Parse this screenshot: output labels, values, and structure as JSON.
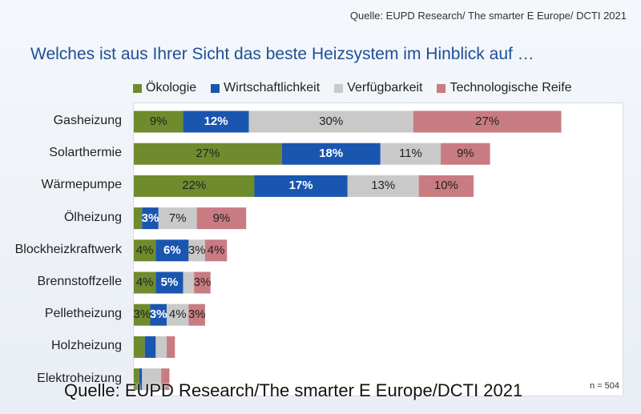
{
  "header": {
    "source": "Quelle: EUPD Research/ The smarter E Europe/ DCTI 2021"
  },
  "chart_data": {
    "type": "bar",
    "orientation": "horizontal",
    "stacked": true,
    "title": "Welches ist aus Ihrer Sicht das beste Heizsystem im Hinblick auf …",
    "categories": [
      "Gasheizung",
      "Solarthermie",
      "Wärmepumpe",
      "Ölheizung",
      "Blockheizkraftwerk",
      "Brennstoffzelle",
      "Pelletheizung",
      "Holzheizung",
      "Elektroheizung"
    ],
    "series": [
      {
        "name": "Ökologie",
        "color": "#6f8b2e",
        "label_color": "#222222",
        "values": [
          9,
          27,
          22,
          1.5,
          4,
          4,
          3,
          2,
          1
        ],
        "labels": [
          "9%",
          "27%",
          "22%",
          "",
          "4%",
          "4%",
          "3%",
          "",
          ""
        ]
      },
      {
        "name": "Wirtschaftlichkeit",
        "color": "#1a56b0",
        "label_color": "#ffffff",
        "values": [
          12,
          18,
          17,
          3,
          6,
          5,
          3,
          2,
          0.5
        ],
        "labels": [
          "12%",
          "18%",
          "17%",
          "3%",
          "6%",
          "5%",
          "3%",
          "",
          ""
        ]
      },
      {
        "name": "Verfügbarkeit",
        "color": "#c9c9c9",
        "label_color": "#222222",
        "values": [
          30,
          11,
          13,
          7,
          3,
          2,
          4,
          2,
          3.5
        ],
        "labels": [
          "30%",
          "11%",
          "13%",
          "7%",
          "3%",
          "",
          "4%",
          "",
          ""
        ]
      },
      {
        "name": "Technologische Reife",
        "color": "#c97b82",
        "label_color": "#222222",
        "values": [
          27,
          9,
          10,
          9,
          4,
          3,
          3,
          1.5,
          1.5
        ],
        "labels": [
          "27%",
          "9%",
          "10%",
          "9%",
          "4%",
          "3%",
          "3%",
          "",
          ""
        ]
      }
    ],
    "legend_position": "top",
    "grid": false,
    "xlim": [
      0,
      100
    ]
  },
  "footer": {
    "n_note": "n = 504",
    "source": "Quelle: EUPD Research/The smarter E Europe/DCTI 2021"
  }
}
